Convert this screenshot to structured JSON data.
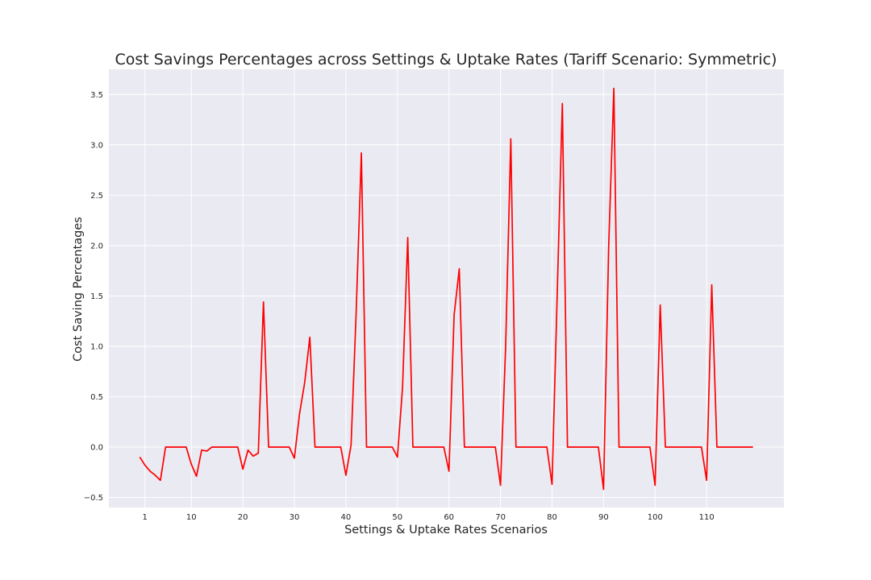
{
  "chart_data": {
    "type": "line",
    "title": "Cost Savings Percentages across Settings & Uptake Rates (Tariff Scenario: Symmetric)",
    "xlabel": "Settings & Uptake Rates Scenarios",
    "ylabel": "Cost Saving Percentages",
    "xlim": [
      -6,
      125
    ],
    "ylim": [
      -0.6,
      3.75
    ],
    "xticks": [
      1,
      10,
      20,
      30,
      40,
      50,
      60,
      70,
      80,
      90,
      100,
      110
    ],
    "xtick_labels": [
      "1",
      "10",
      "20",
      "30",
      "40",
      "50",
      "60",
      "70",
      "80",
      "90",
      "100",
      "110"
    ],
    "yticks": [
      -0.5,
      0.0,
      0.5,
      1.0,
      1.5,
      2.0,
      2.5,
      3.0,
      3.5
    ],
    "ytick_labels": [
      "−0.5",
      "0.0",
      "0.5",
      "1.0",
      "1.5",
      "2.0",
      "2.5",
      "3.0",
      "3.5"
    ],
    "grid": true,
    "line_color": "#ff0000",
    "series": [
      {
        "x": [
          0,
          1,
          2,
          3,
          4,
          5,
          6,
          7,
          8,
          9,
          10,
          11,
          12,
          13,
          14,
          15,
          16,
          17,
          18,
          19,
          20,
          21,
          22,
          23,
          24,
          25,
          26,
          27,
          28,
          29,
          30,
          31,
          32,
          33,
          34,
          35,
          36,
          37,
          38,
          39,
          40,
          41,
          42,
          43,
          44,
          45,
          46,
          47,
          48,
          49,
          50,
          51,
          52,
          53,
          54,
          55,
          56,
          57,
          58,
          59,
          60,
          61,
          62,
          63,
          64,
          65,
          66,
          67,
          68,
          69,
          70,
          71,
          72,
          73,
          74,
          75,
          76,
          77,
          78,
          79,
          80,
          81,
          82,
          83,
          84,
          85,
          86,
          87,
          88,
          89,
          90,
          91,
          92,
          93,
          94,
          95,
          96,
          97,
          98,
          99,
          100,
          101,
          102,
          103,
          104,
          105,
          106,
          107,
          108,
          109,
          110,
          111,
          112,
          113,
          114,
          115,
          116,
          117,
          118,
          119
        ],
        "values": [
          -0.1,
          -0.18,
          -0.24,
          -0.28,
          -0.33,
          0,
          0,
          0,
          0,
          0,
          -0.17,
          -0.29,
          -0.03,
          -0.04,
          0,
          0,
          0,
          0,
          0,
          0,
          -0.22,
          -0.03,
          -0.09,
          -0.06,
          1.44,
          0,
          0,
          0,
          0,
          0,
          -0.11,
          0.33,
          0.64,
          1.09,
          0,
          0,
          0,
          0,
          0,
          0,
          -0.28,
          0.02,
          1.35,
          2.92,
          0,
          0,
          0,
          0,
          0,
          0,
          -0.1,
          0.6,
          2.08,
          0,
          0,
          0,
          0,
          0,
          0,
          0,
          -0.24,
          1.31,
          1.77,
          0,
          0,
          0,
          0,
          0,
          0,
          0,
          -0.38,
          1.0,
          3.06,
          0,
          0,
          0,
          0,
          0,
          0,
          0,
          -0.37,
          1.5,
          3.41,
          0,
          0,
          0,
          0,
          0,
          0,
          0,
          -0.42,
          2.0,
          3.56,
          0,
          0,
          0,
          0,
          0,
          0,
          0,
          -0.38,
          1.41,
          0,
          0,
          0,
          0,
          0,
          0,
          0,
          0,
          -0.33,
          1.61,
          0,
          0,
          0,
          0,
          0,
          0,
          0,
          0
        ]
      }
    ]
  }
}
